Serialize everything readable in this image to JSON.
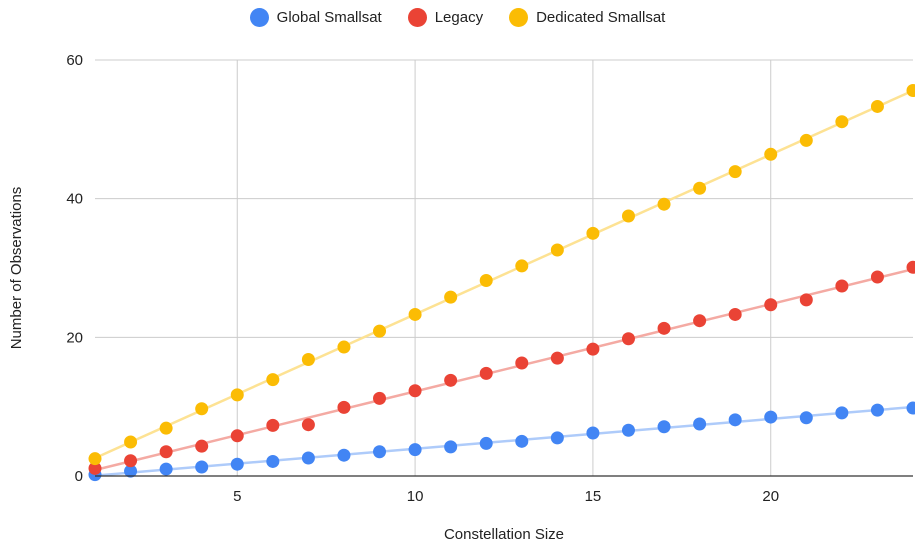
{
  "chart_data": {
    "type": "scatter",
    "title": "",
    "xlabel": "Constellation Size",
    "ylabel": "Number of Observations",
    "xlim": [
      1,
      24
    ],
    "ylim": [
      0,
      60
    ],
    "x_ticks": [
      5,
      10,
      15,
      20
    ],
    "y_ticks": [
      0,
      20,
      40,
      60
    ],
    "grid": true,
    "legend_position": "top",
    "trendlines": true,
    "x": [
      1,
      2,
      3,
      4,
      5,
      6,
      7,
      8,
      9,
      10,
      11,
      12,
      13,
      14,
      15,
      16,
      17,
      18,
      19,
      20,
      21,
      22,
      23,
      24
    ],
    "series": [
      {
        "name": "Global Smallsat",
        "color": "#4285f4",
        "line_color": "#aecbfa",
        "values": [
          0.2,
          0.7,
          1.0,
          1.3,
          1.7,
          2.1,
          2.6,
          3.0,
          3.5,
          3.8,
          4.2,
          4.7,
          5.0,
          5.5,
          6.2,
          6.6,
          7.1,
          7.5,
          8.1,
          8.5,
          8.4,
          9.1,
          9.5,
          9.8
        ]
      },
      {
        "name": "Legacy",
        "color": "#ea4335",
        "line_color": "#f4aaa3",
        "values": [
          1.1,
          2.2,
          3.5,
          4.3,
          5.8,
          7.3,
          7.4,
          9.9,
          11.2,
          12.3,
          13.8,
          14.8,
          16.3,
          17.0,
          18.3,
          19.8,
          21.3,
          22.4,
          23.3,
          24.7,
          25.4,
          27.4,
          28.7,
          30.1
        ]
      },
      {
        "name": "Dedicated Smallsat",
        "color": "#fbbc04",
        "line_color": "#fde293",
        "values": [
          2.5,
          4.9,
          6.9,
          9.7,
          11.7,
          13.9,
          16.8,
          18.6,
          20.9,
          23.3,
          25.8,
          28.2,
          30.3,
          32.6,
          35.0,
          37.5,
          39.2,
          41.5,
          43.9,
          46.4,
          48.4,
          51.1,
          53.3,
          55.6
        ]
      }
    ]
  }
}
